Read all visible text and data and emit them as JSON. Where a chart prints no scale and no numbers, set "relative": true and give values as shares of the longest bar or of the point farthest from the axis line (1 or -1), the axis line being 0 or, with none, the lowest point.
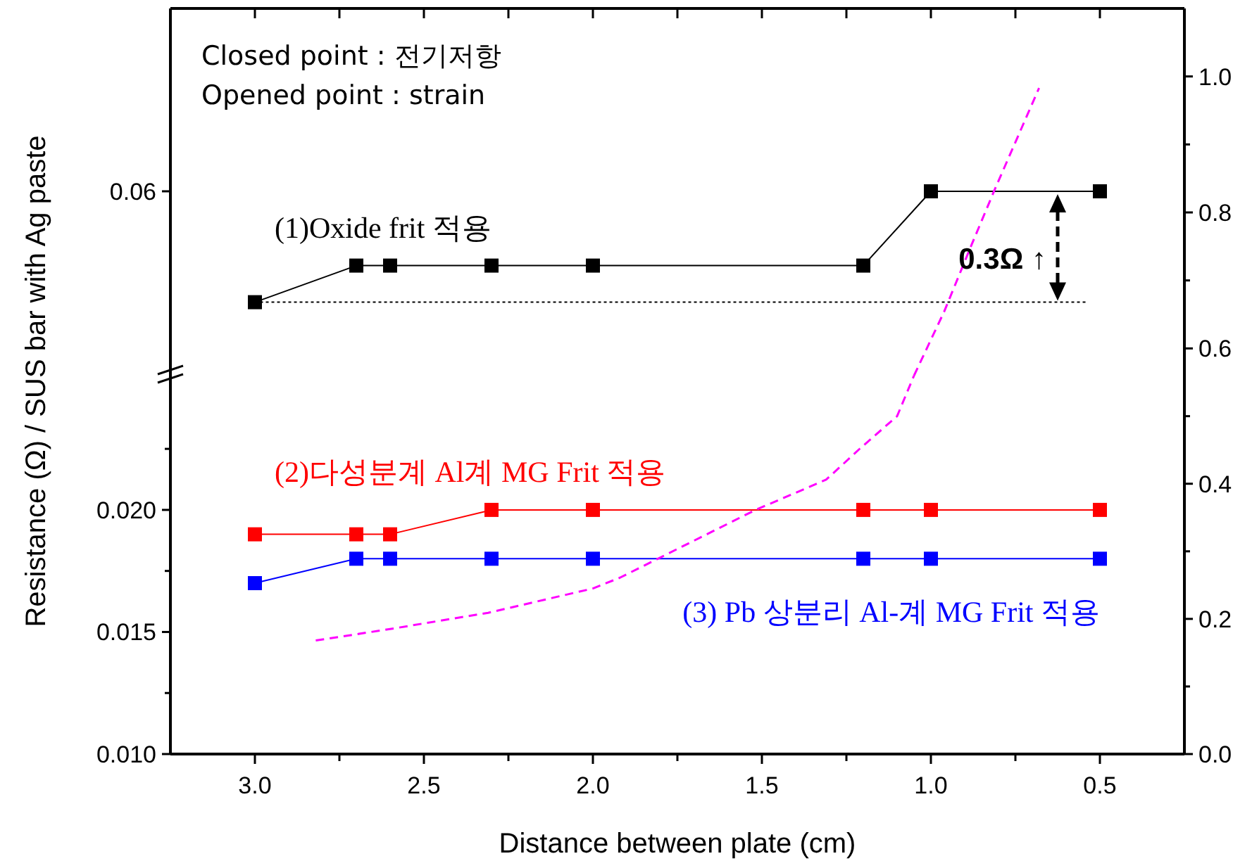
{
  "chart_data": [
    {
      "type": "line",
      "xlim": [
        3.25,
        0.25
      ],
      "xticks": [
        {
          "value": 3,
          "label": null
        },
        {
          "value": 2.75,
          "label": null
        },
        {
          "value": 2.5,
          "label": null
        },
        {
          "value": 2.25,
          "label": null
        },
        {
          "value": 2,
          "label": null
        },
        {
          "value": 1.75,
          "label": null
        },
        {
          "value": 1.5,
          "label": null
        },
        {
          "value": 1.25,
          "label": null
        },
        {
          "value": 1,
          "label": null
        },
        {
          "value": 0.75,
          "label": null
        },
        {
          "value": 0.5,
          "label": null
        }
      ],
      "relative": true,
      "y2lim": [
        0.56,
        1.1
      ],
      "y2ticks": [
        0.6,
        {
          "value": 0.7,
          "label": null
        },
        0.8,
        {
          "value": 0.9,
          "label": null
        },
        {
          "value": 1,
          "label": "1.0"
        }
      ],
      "tick_labels": "y",
      "marker": "square",
      "series": [
        {
          "name": "(1)Oxide frit 적용",
          "color": "#000000",
          "x": [
            3.0,
            2.7,
            2.6,
            2.3,
            2.0,
            1.2,
            1.0,
            0.5
          ],
          "values": [
            0,
            0.33,
            0.33,
            0.33,
            0.33,
            0.33,
            1,
            1
          ]
        },
        {
          "axis": "y2",
          "color": "#ff00ff",
          "line_style": "dashed",
          "marker": "none",
          "x": [
            1.05,
            0.96,
            0.88,
            0.81,
            0.68
          ],
          "values": [
            0.56,
            0.655,
            0.752,
            0.835,
            0.983
          ]
        }
      ],
      "ref_lines": [
        {
          "axis": "y",
          "value": 0,
          "line_style": "dotted",
          "color": "#000000"
        }
      ],
      "annotations": [
        "Closed point : 전기저항",
        "Opened point : strain",
        "0.3Ω ↑",
        "0.06"
      ]
    },
    {
      "type": "line",
      "xlabel": "Distance between plate (cm)",
      "ylabel": "Resistance (Ω) / SUS bar with Ag paste",
      "xlim": [
        3.25,
        0.25
      ],
      "xticks": [
        {
          "value": 3,
          "label": "3.0"
        },
        {
          "value": 2.75,
          "label": null
        },
        {
          "value": 2.5,
          "label": "2.5"
        },
        {
          "value": 2.25,
          "label": null
        },
        {
          "value": 2,
          "label": "2.0"
        },
        {
          "value": 1.75,
          "label": null
        },
        {
          "value": 1.5,
          "label": "1.5"
        },
        {
          "value": 1.25,
          "label": null
        },
        {
          "value": 1,
          "label": "1.0"
        },
        {
          "value": 0.75,
          "label": null
        },
        {
          "value": 0.5,
          "label": "0.5"
        }
      ],
      "ylim": [
        0.01,
        0.0255
      ],
      "yticks": [
        {
          "value": 0.01,
          "label": "0.010"
        },
        {
          "value": 0.0125,
          "label": null
        },
        {
          "value": 0.015,
          "label": "0.015"
        },
        {
          "value": 0.0175,
          "label": null
        },
        {
          "value": 0.02,
          "label": "0.020"
        },
        {
          "value": 0.0225,
          "label": null
        }
      ],
      "y2lim": [
        0,
        0.56
      ],
      "y2ticks": [
        {
          "value": 0,
          "label": "0.0"
        },
        {
          "value": 0.1,
          "label": null
        },
        0.2,
        {
          "value": 0.3,
          "label": null
        },
        0.4,
        {
          "value": 0.5,
          "label": null
        }
      ],
      "marker": "square",
      "series": [
        {
          "name": "(2)다성분계  Al계 MG Frit  적용",
          "color": "#ff0000",
          "x": [
            3.0,
            2.7,
            2.6,
            2.3,
            2.0,
            1.2,
            1.0,
            0.5
          ],
          "values": [
            0.019,
            0.019,
            0.019,
            0.02,
            0.02,
            0.02,
            0.02,
            0.02
          ]
        },
        {
          "name": "(3) Pb 상분리 Al-계 MG Frit  적용",
          "color": "#0000ff",
          "x": [
            3.0,
            2.7,
            2.6,
            2.3,
            2.0,
            1.2,
            1.0,
            0.5
          ],
          "values": [
            0.017,
            0.018,
            0.018,
            0.018,
            0.018,
            0.018,
            0.018,
            0.018
          ]
        },
        {
          "axis": "y2",
          "color": "#ff00ff",
          "line_style": "dashed",
          "marker": "none",
          "x": [
            2.82,
            2.6,
            2.31,
            2.0,
            1.92,
            1.52,
            1.31,
            1.21,
            1.1,
            1.05
          ],
          "values": [
            0.168,
            0.185,
            0.209,
            0.245,
            0.261,
            0.361,
            0.406,
            0.452,
            0.5,
            0.56
          ]
        }
      ]
    }
  ]
}
